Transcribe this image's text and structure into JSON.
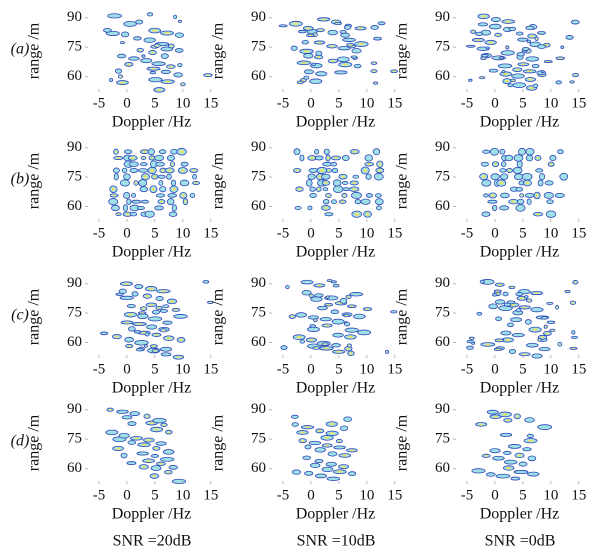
{
  "chart_data": [
    {
      "type": "contour",
      "xlabel": "Doppler /Hz",
      "ylabel": "range /m",
      "xlim": [
        -7.5,
        17
      ],
      "ylim": [
        52,
        94
      ],
      "xticks": [
        -5,
        0,
        5,
        10,
        15
      ],
      "yticks": [
        60,
        75,
        90
      ]
    },
    {
      "type": "contour",
      "xlabel": "Doppler /Hz",
      "ylabel": "range /m",
      "xlim": [
        -7.5,
        17
      ],
      "ylim": [
        52,
        94
      ],
      "xticks": [
        -5,
        0,
        5,
        10,
        15
      ],
      "yticks": [
        60,
        75,
        90
      ]
    },
    {
      "type": "contour",
      "xlabel": "Doppler /Hz",
      "ylabel": "range /m",
      "xlim": [
        -7.5,
        17
      ],
      "ylim": [
        52,
        94
      ],
      "xticks": [
        -5,
        0,
        5,
        10,
        15
      ],
      "yticks": [
        60,
        75,
        90
      ]
    },
    {
      "type": "contour",
      "xlabel": "Doppler /Hz",
      "ylabel": "range /m",
      "xlim": [
        -7.5,
        17
      ],
      "ylim": [
        52,
        94
      ],
      "xticks": [
        -5,
        0,
        5,
        10,
        15
      ],
      "yticks": [
        60,
        75,
        90
      ]
    },
    {
      "type": "contour",
      "xlabel": "Doppler /Hz",
      "ylabel": "range /m",
      "xlim": [
        -7.5,
        17
      ],
      "ylim": [
        52,
        94
      ],
      "xticks": [
        -5,
        0,
        5,
        10,
        15
      ],
      "yticks": [
        60,
        75,
        90
      ]
    },
    {
      "type": "contour",
      "xlabel": "Doppler /Hz",
      "ylabel": "range /m",
      "xlim": [
        -7.5,
        17
      ],
      "ylim": [
        52,
        94
      ],
      "xticks": [
        -5,
        0,
        5,
        10,
        15
      ],
      "yticks": [
        60,
        75,
        90
      ]
    },
    {
      "type": "contour",
      "xlabel": "Doppler /Hz",
      "ylabel": "range /m",
      "xlim": [
        -7.5,
        17
      ],
      "ylim": [
        52,
        94
      ],
      "xticks": [
        -5,
        0,
        5,
        10,
        15
      ],
      "yticks": [
        60,
        75,
        90
      ]
    },
    {
      "type": "contour",
      "xlabel": "Doppler /Hz",
      "ylabel": "range /m",
      "xlim": [
        -7.5,
        17
      ],
      "ylim": [
        52,
        94
      ],
      "xticks": [
        -5,
        0,
        5,
        10,
        15
      ],
      "yticks": [
        60,
        75,
        90
      ]
    },
    {
      "type": "contour",
      "xlabel": "Doppler /Hz",
      "ylabel": "range /m",
      "xlim": [
        -7.5,
        17
      ],
      "ylim": [
        52,
        94
      ],
      "xticks": [
        -5,
        0,
        5,
        10,
        15
      ],
      "yticks": [
        60,
        75,
        90
      ]
    },
    {
      "type": "contour",
      "xlabel": "Doppler /Hz",
      "ylabel": "range /m",
      "xlim": [
        -7.5,
        17
      ],
      "ylim": [
        52,
        94
      ],
      "xticks": [
        -5,
        0,
        5,
        10,
        15
      ],
      "yticks": [
        60,
        75,
        90
      ]
    },
    {
      "type": "contour",
      "xlabel": "Doppler /Hz",
      "ylabel": "range /m",
      "xlim": [
        -7.5,
        17
      ],
      "ylim": [
        52,
        94
      ],
      "xticks": [
        -5,
        0,
        5,
        10,
        15
      ],
      "yticks": [
        60,
        75,
        90
      ]
    },
    {
      "type": "contour",
      "xlabel": "Doppler /Hz",
      "ylabel": "range /m",
      "xlim": [
        -7.5,
        17
      ],
      "ylim": [
        52,
        94
      ],
      "xticks": [
        -5,
        0,
        5,
        10,
        15
      ],
      "yticks": [
        60,
        75,
        90
      ]
    }
  ],
  "row_labels": [
    "(a)",
    "(b)",
    "(c)",
    "(d)"
  ],
  "column_labels": [
    "SNR =20dB",
    "SNR =10dB",
    "SNR =0dB"
  ]
}
